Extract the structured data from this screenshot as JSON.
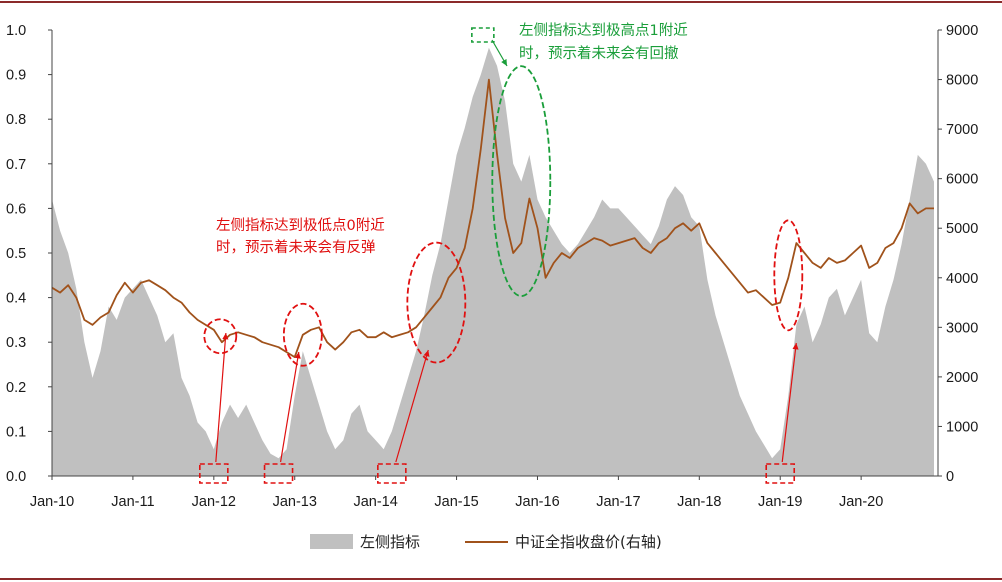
{
  "chart_data": {
    "type": "area+line",
    "x_ticks": [
      "Jan-10",
      "Jan-11",
      "Jan-12",
      "Jan-13",
      "Jan-14",
      "Jan-15",
      "Jan-16",
      "Jan-17",
      "Jan-18",
      "Jan-19",
      "Jan-20"
    ],
    "y_left": {
      "ticks": [
        "0.0",
        "0.1",
        "0.2",
        "0.3",
        "0.4",
        "0.5",
        "0.6",
        "0.7",
        "0.8",
        "0.9",
        "1.0"
      ],
      "ylim": [
        0,
        1.0
      ]
    },
    "y_right": {
      "ticks": [
        "0",
        "1000",
        "2000",
        "3000",
        "4000",
        "5000",
        "6000",
        "7000",
        "8000",
        "9000"
      ],
      "ylim": [
        0,
        9000
      ]
    },
    "series": [
      {
        "name": "左侧指标",
        "kind": "area",
        "axis": "left",
        "color": "#c0c0c0",
        "points": [
          [
            2010.0,
            0.62
          ],
          [
            2010.1,
            0.55
          ],
          [
            2010.2,
            0.5
          ],
          [
            2010.3,
            0.42
          ],
          [
            2010.4,
            0.3
          ],
          [
            2010.5,
            0.22
          ],
          [
            2010.6,
            0.28
          ],
          [
            2010.7,
            0.38
          ],
          [
            2010.8,
            0.35
          ],
          [
            2010.9,
            0.4
          ],
          [
            2011.0,
            0.42
          ],
          [
            2011.1,
            0.44
          ],
          [
            2011.2,
            0.4
          ],
          [
            2011.3,
            0.36
          ],
          [
            2011.4,
            0.3
          ],
          [
            2011.5,
            0.32
          ],
          [
            2011.6,
            0.22
          ],
          [
            2011.7,
            0.18
          ],
          [
            2011.8,
            0.12
          ],
          [
            2011.9,
            0.1
          ],
          [
            2012.0,
            0.06
          ],
          [
            2012.1,
            0.12
          ],
          [
            2012.2,
            0.16
          ],
          [
            2012.3,
            0.13
          ],
          [
            2012.4,
            0.16
          ],
          [
            2012.5,
            0.12
          ],
          [
            2012.6,
            0.08
          ],
          [
            2012.7,
            0.05
          ],
          [
            2012.8,
            0.04
          ],
          [
            2012.9,
            0.06
          ],
          [
            2013.0,
            0.18
          ],
          [
            2013.1,
            0.28
          ],
          [
            2013.2,
            0.22
          ],
          [
            2013.3,
            0.16
          ],
          [
            2013.4,
            0.1
          ],
          [
            2013.5,
            0.06
          ],
          [
            2013.6,
            0.08
          ],
          [
            2013.7,
            0.14
          ],
          [
            2013.8,
            0.16
          ],
          [
            2013.9,
            0.1
          ],
          [
            2014.0,
            0.08
          ],
          [
            2014.1,
            0.06
          ],
          [
            2014.2,
            0.1
          ],
          [
            2014.3,
            0.16
          ],
          [
            2014.4,
            0.22
          ],
          [
            2014.5,
            0.28
          ],
          [
            2014.6,
            0.36
          ],
          [
            2014.7,
            0.45
          ],
          [
            2014.8,
            0.52
          ],
          [
            2014.9,
            0.62
          ],
          [
            2015.0,
            0.72
          ],
          [
            2015.1,
            0.78
          ],
          [
            2015.2,
            0.85
          ],
          [
            2015.3,
            0.9
          ],
          [
            2015.4,
            0.96
          ],
          [
            2015.5,
            0.92
          ],
          [
            2015.6,
            0.84
          ],
          [
            2015.7,
            0.7
          ],
          [
            2015.8,
            0.66
          ],
          [
            2015.9,
            0.72
          ],
          [
            2016.0,
            0.62
          ],
          [
            2016.1,
            0.58
          ],
          [
            2016.2,
            0.55
          ],
          [
            2016.3,
            0.52
          ],
          [
            2016.4,
            0.5
          ],
          [
            2016.5,
            0.52
          ],
          [
            2016.6,
            0.55
          ],
          [
            2016.7,
            0.58
          ],
          [
            2016.8,
            0.62
          ],
          [
            2016.9,
            0.6
          ],
          [
            2017.0,
            0.6
          ],
          [
            2017.1,
            0.58
          ],
          [
            2017.2,
            0.56
          ],
          [
            2017.3,
            0.54
          ],
          [
            2017.4,
            0.52
          ],
          [
            2017.5,
            0.56
          ],
          [
            2017.6,
            0.62
          ],
          [
            2017.7,
            0.65
          ],
          [
            2017.8,
            0.63
          ],
          [
            2017.9,
            0.58
          ],
          [
            2018.0,
            0.56
          ],
          [
            2018.1,
            0.44
          ],
          [
            2018.2,
            0.36
          ],
          [
            2018.3,
            0.3
          ],
          [
            2018.4,
            0.24
          ],
          [
            2018.5,
            0.18
          ],
          [
            2018.6,
            0.14
          ],
          [
            2018.7,
            0.1
          ],
          [
            2018.8,
            0.07
          ],
          [
            2018.9,
            0.04
          ],
          [
            2019.0,
            0.06
          ],
          [
            2019.1,
            0.18
          ],
          [
            2019.2,
            0.34
          ],
          [
            2019.3,
            0.38
          ],
          [
            2019.4,
            0.3
          ],
          [
            2019.5,
            0.34
          ],
          [
            2019.6,
            0.4
          ],
          [
            2019.7,
            0.42
          ],
          [
            2019.8,
            0.36
          ],
          [
            2019.9,
            0.4
          ],
          [
            2020.0,
            0.44
          ],
          [
            2020.1,
            0.32
          ],
          [
            2020.2,
            0.3
          ],
          [
            2020.3,
            0.38
          ],
          [
            2020.4,
            0.44
          ],
          [
            2020.5,
            0.52
          ],
          [
            2020.6,
            0.62
          ],
          [
            2020.7,
            0.72
          ],
          [
            2020.8,
            0.7
          ],
          [
            2020.9,
            0.66
          ]
        ]
      },
      {
        "name": "中证全指收盘价(右轴)",
        "kind": "line",
        "axis": "right",
        "color": "#a0521b",
        "points": [
          [
            2010.0,
            3800
          ],
          [
            2010.1,
            3700
          ],
          [
            2010.2,
            3850
          ],
          [
            2010.3,
            3600
          ],
          [
            2010.4,
            3150
          ],
          [
            2010.5,
            3050
          ],
          [
            2010.6,
            3200
          ],
          [
            2010.7,
            3300
          ],
          [
            2010.8,
            3650
          ],
          [
            2010.9,
            3900
          ],
          [
            2011.0,
            3700
          ],
          [
            2011.1,
            3900
          ],
          [
            2011.2,
            3950
          ],
          [
            2011.3,
            3850
          ],
          [
            2011.4,
            3750
          ],
          [
            2011.5,
            3600
          ],
          [
            2011.6,
            3500
          ],
          [
            2011.7,
            3300
          ],
          [
            2011.8,
            3150
          ],
          [
            2011.9,
            3050
          ],
          [
            2012.0,
            2950
          ],
          [
            2012.1,
            2700
          ],
          [
            2012.2,
            2850
          ],
          [
            2012.3,
            2900
          ],
          [
            2012.4,
            2850
          ],
          [
            2012.5,
            2800
          ],
          [
            2012.6,
            2700
          ],
          [
            2012.7,
            2650
          ],
          [
            2012.8,
            2600
          ],
          [
            2012.9,
            2500
          ],
          [
            2013.0,
            2400
          ],
          [
            2013.1,
            2850
          ],
          [
            2013.2,
            2950
          ],
          [
            2013.3,
            3000
          ],
          [
            2013.4,
            2700
          ],
          [
            2013.5,
            2550
          ],
          [
            2013.6,
            2700
          ],
          [
            2013.7,
            2900
          ],
          [
            2013.8,
            2950
          ],
          [
            2013.9,
            2800
          ],
          [
            2014.0,
            2800
          ],
          [
            2014.1,
            2900
          ],
          [
            2014.2,
            2800
          ],
          [
            2014.3,
            2850
          ],
          [
            2014.4,
            2900
          ],
          [
            2014.5,
            3000
          ],
          [
            2014.6,
            3200
          ],
          [
            2014.7,
            3400
          ],
          [
            2014.8,
            3600
          ],
          [
            2014.9,
            4000
          ],
          [
            2015.0,
            4200
          ],
          [
            2015.1,
            4600
          ],
          [
            2015.2,
            5400
          ],
          [
            2015.3,
            6600
          ],
          [
            2015.4,
            8000
          ],
          [
            2015.5,
            6500
          ],
          [
            2015.6,
            5200
          ],
          [
            2015.7,
            4500
          ],
          [
            2015.8,
            4700
          ],
          [
            2015.9,
            5600
          ],
          [
            2016.0,
            5000
          ],
          [
            2016.1,
            4000
          ],
          [
            2016.2,
            4300
          ],
          [
            2016.3,
            4500
          ],
          [
            2016.4,
            4400
          ],
          [
            2016.5,
            4600
          ],
          [
            2016.6,
            4700
          ],
          [
            2016.7,
            4800
          ],
          [
            2016.8,
            4750
          ],
          [
            2016.9,
            4650
          ],
          [
            2017.0,
            4700
          ],
          [
            2017.1,
            4750
          ],
          [
            2017.2,
            4800
          ],
          [
            2017.3,
            4600
          ],
          [
            2017.4,
            4500
          ],
          [
            2017.5,
            4700
          ],
          [
            2017.6,
            4800
          ],
          [
            2017.7,
            5000
          ],
          [
            2017.8,
            5100
          ],
          [
            2017.9,
            4950
          ],
          [
            2018.0,
            5100
          ],
          [
            2018.1,
            4700
          ],
          [
            2018.2,
            4500
          ],
          [
            2018.3,
            4300
          ],
          [
            2018.4,
            4100
          ],
          [
            2018.5,
            3900
          ],
          [
            2018.6,
            3700
          ],
          [
            2018.7,
            3750
          ],
          [
            2018.8,
            3600
          ],
          [
            2018.9,
            3450
          ],
          [
            2019.0,
            3500
          ],
          [
            2019.1,
            4000
          ],
          [
            2019.2,
            4700
          ],
          [
            2019.3,
            4500
          ],
          [
            2019.4,
            4300
          ],
          [
            2019.5,
            4200
          ],
          [
            2019.6,
            4400
          ],
          [
            2019.7,
            4300
          ],
          [
            2019.8,
            4350
          ],
          [
            2019.9,
            4500
          ],
          [
            2020.0,
            4650
          ],
          [
            2020.1,
            4200
          ],
          [
            2020.2,
            4300
          ],
          [
            2020.3,
            4600
          ],
          [
            2020.4,
            4700
          ],
          [
            2020.5,
            5000
          ],
          [
            2020.6,
            5500
          ],
          [
            2020.7,
            5300
          ],
          [
            2020.8,
            5400
          ],
          [
            2020.9,
            5400
          ]
        ]
      }
    ],
    "annotations": [
      {
        "text_lines": [
          "左侧指标达到极低点0附近",
          "时，预示着未来会有反弹"
        ],
        "color": "#e01010"
      },
      {
        "text_lines": [
          "左侧指标达到极高点1附近",
          "时，预示着未来会有回撤"
        ],
        "color": "#1a9e3a"
      }
    ],
    "legend": {
      "placement": "bottom-center"
    }
  }
}
